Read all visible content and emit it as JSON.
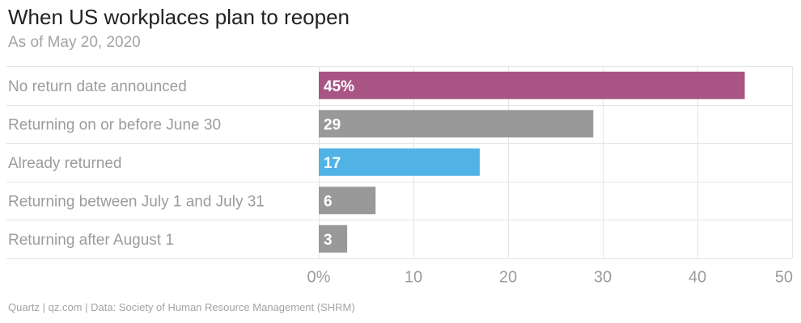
{
  "title": "When US workplaces plan to reopen",
  "subtitle": "As of May 20, 2020",
  "source": "Quartz | qz.com | Data: Society of Human Resource Management (SHRM)",
  "chart_data": {
    "type": "bar",
    "orientation": "horizontal",
    "categories": [
      "No return date announced",
      "Returning on or before June 30",
      "Already returned",
      "Returning between July 1 and July 31",
      "Returning after August 1"
    ],
    "values": [
      45,
      29,
      17,
      6,
      3
    ],
    "value_labels": [
      "45%",
      "29",
      "17",
      "6",
      "3"
    ],
    "colors": [
      "#a85585",
      "#999999",
      "#51b2e5",
      "#999999",
      "#999999"
    ],
    "xlim": [
      0,
      50
    ],
    "xticks": [
      0,
      10,
      20,
      30,
      40,
      50
    ],
    "xtick_labels": [
      "0%",
      "10",
      "20",
      "30",
      "40",
      "50"
    ],
    "grid": true
  }
}
